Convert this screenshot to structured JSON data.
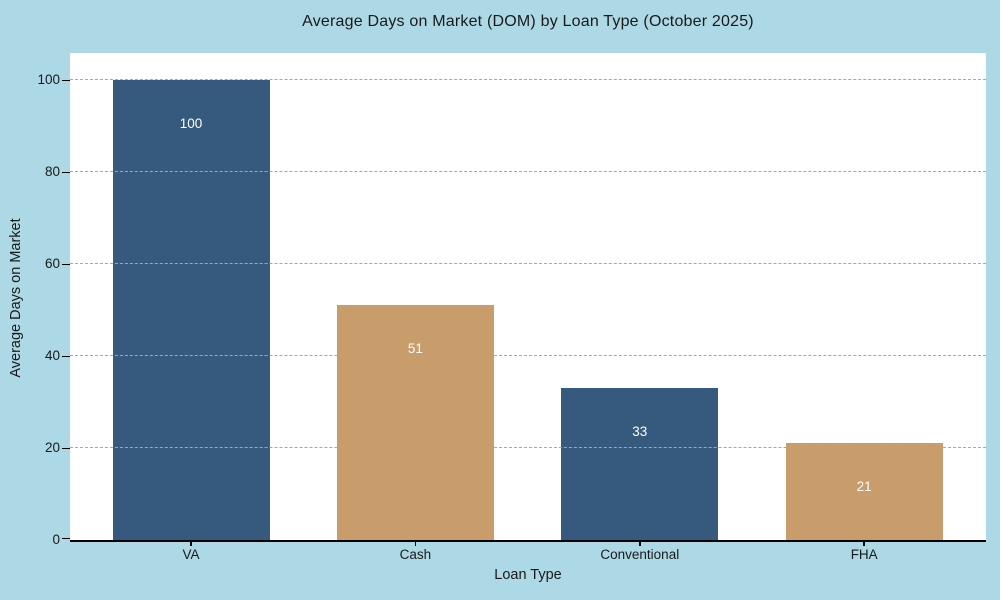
{
  "colors": {
    "figure_background": "#ADD8E6",
    "plot_background": "#FFFFFF",
    "navy_bar": "#36597E",
    "tan_bar": "#C89C6B",
    "grid_line": "#A6A6A6",
    "axis_line": "#000000",
    "text": "#1A1A1A",
    "bar_value_text": "#FFFFFF"
  },
  "chart_data": {
    "type": "bar",
    "title": "Average Days on Market (DOM) by Loan Type (October 2025)",
    "xlabel": "Loan Type",
    "ylabel": "Average Days on Market",
    "categories": [
      "VA",
      "Cash",
      "Conventional",
      "FHA"
    ],
    "values": [
      100,
      51,
      33,
      21
    ],
    "bar_value_labels": [
      "100",
      "51",
      "33",
      "21"
    ],
    "bar_colors": [
      "#36597E",
      "#C89C6B",
      "#36597E",
      "#C89C6B"
    ],
    "y_ticks": [
      0,
      20,
      40,
      60,
      80,
      100
    ],
    "ylim": [
      0,
      106
    ],
    "grid": "horizontal dashed, drawn over bars",
    "legend": "none",
    "bar_label_position": "inside near top, centered"
  }
}
